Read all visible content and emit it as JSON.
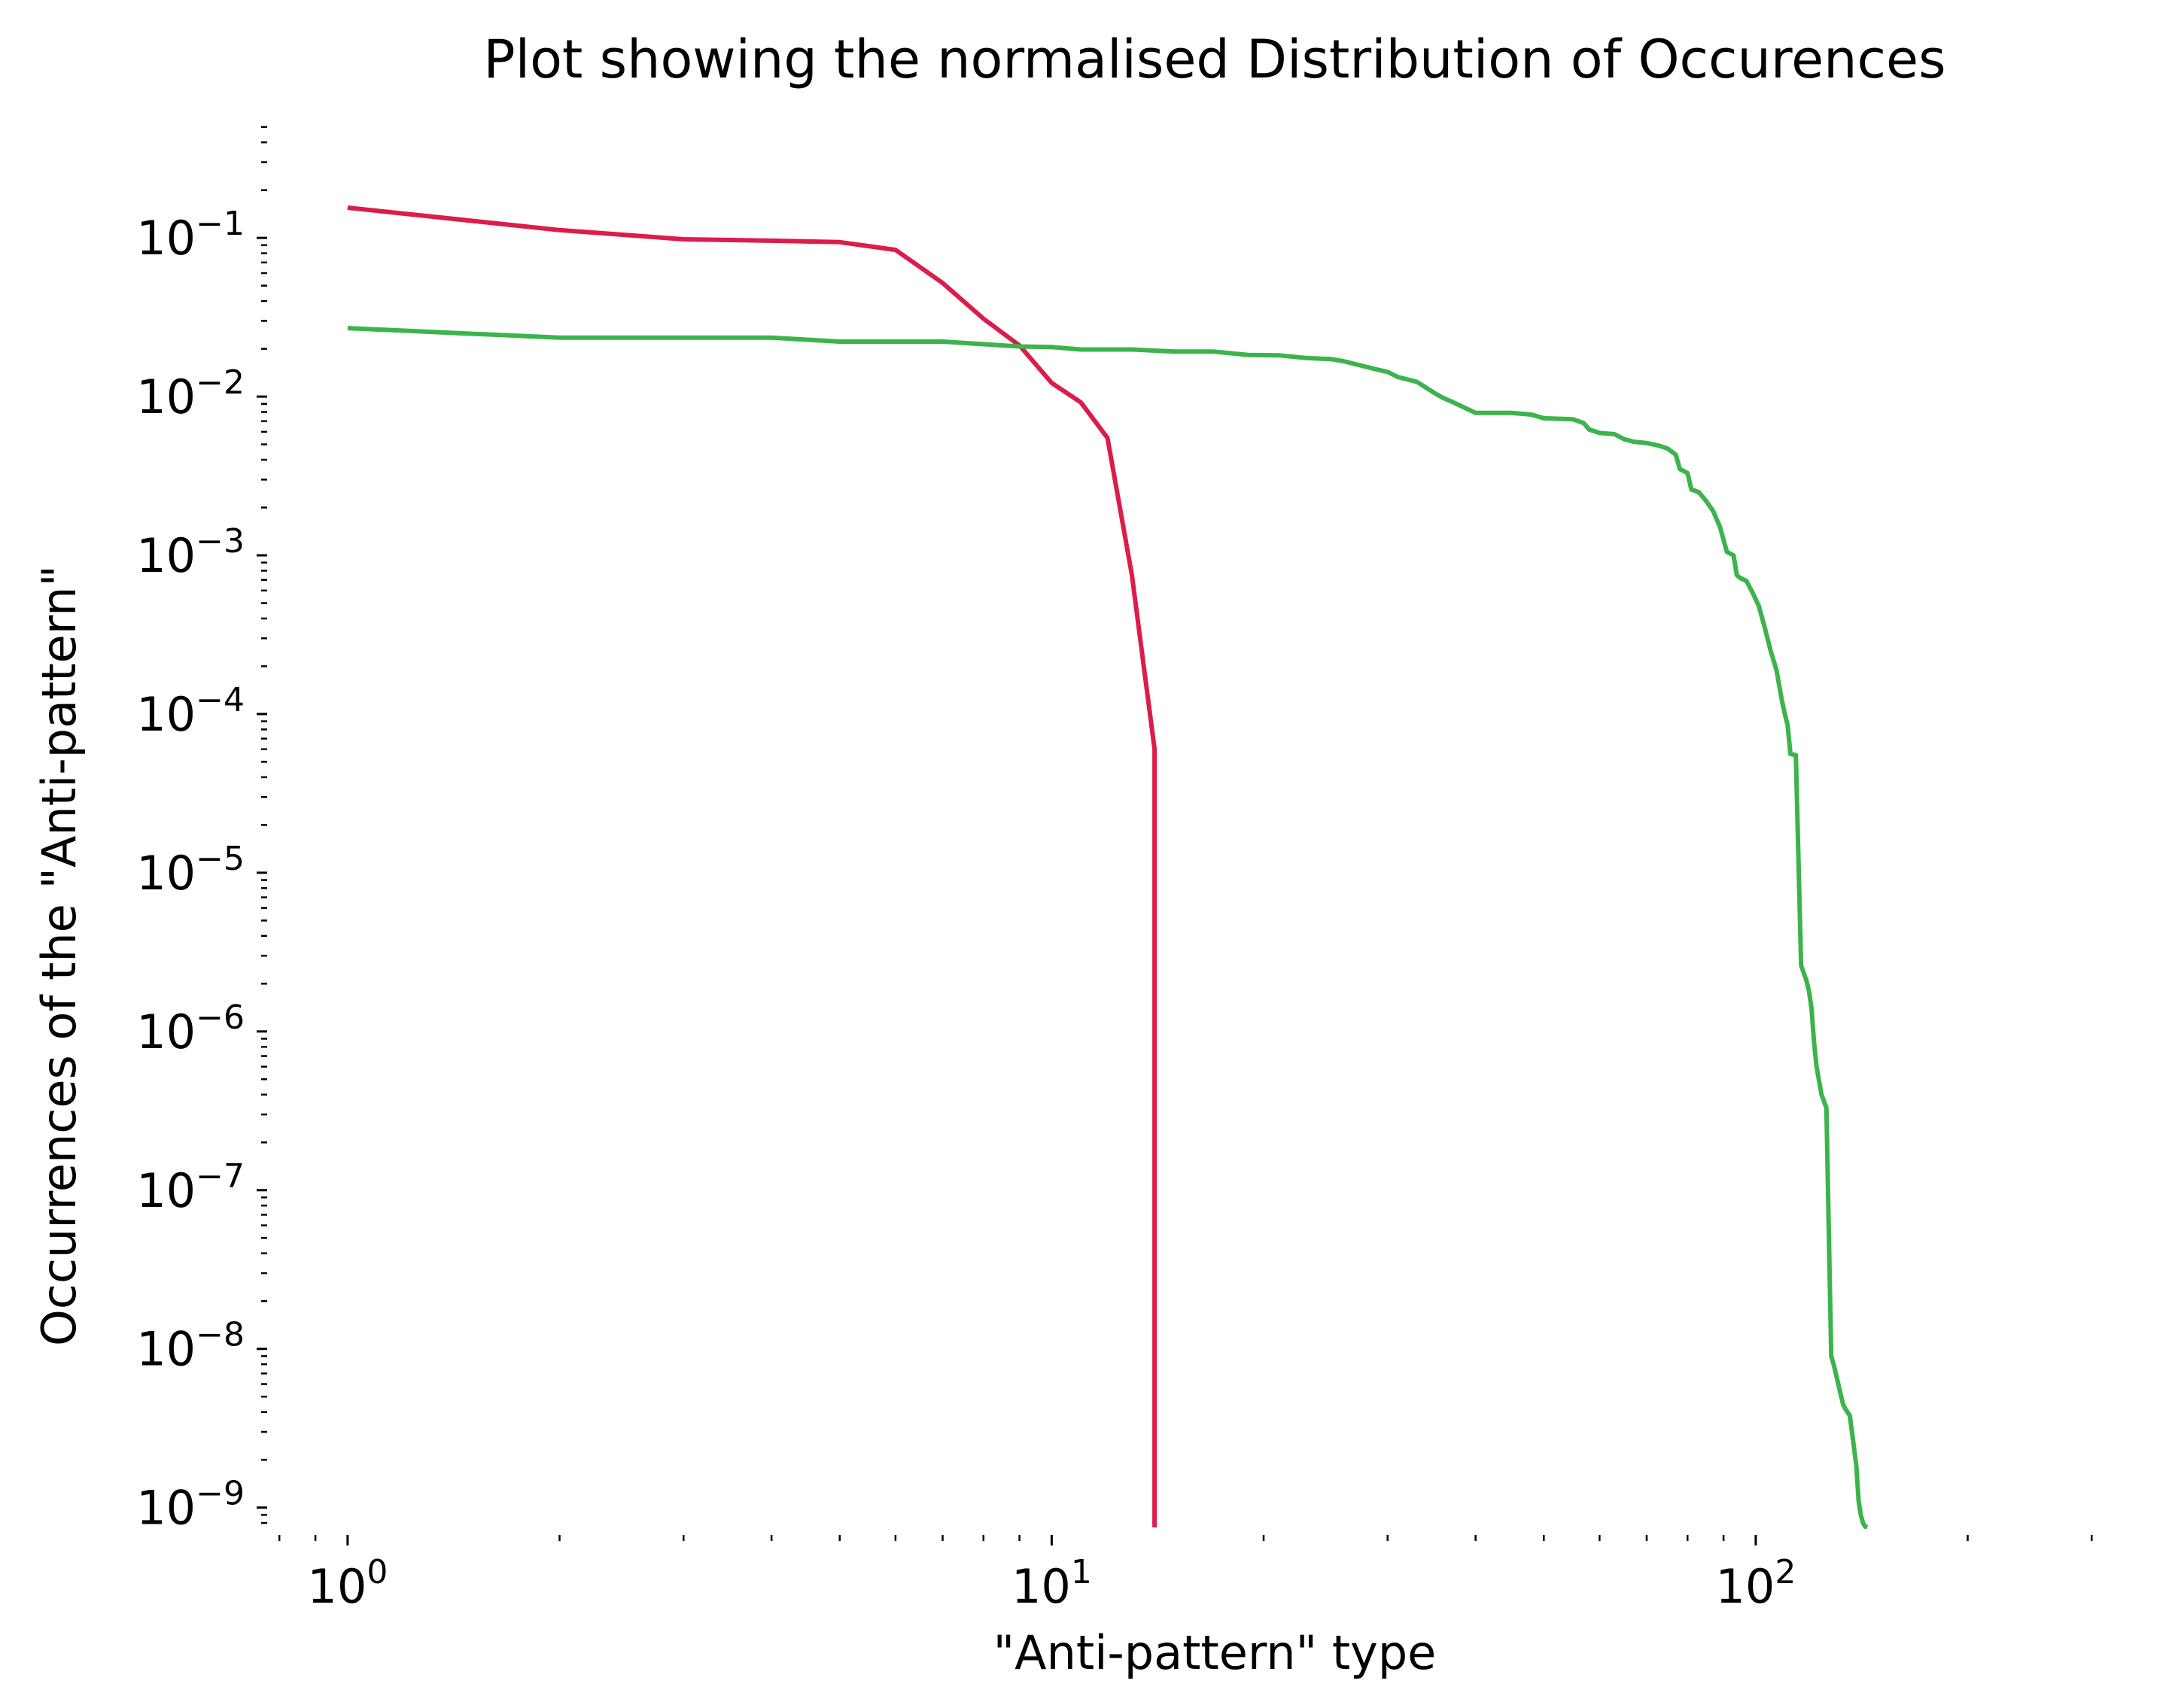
{
  "chart_data": {
    "type": "line",
    "title": "Plot showing the normalised Distribution of Occurences",
    "xlabel": "\"Anti-pattern\" type",
    "ylabel": "Occurrences of the \"Anti-pattern\"",
    "xscale": "log",
    "yscale": "log",
    "xlim": [
      0.75,
      330
    ],
    "ylim": [
      7.5e-10,
      0.55
    ],
    "grid": false,
    "legend": "none",
    "x_ticks": [
      {
        "value": 1,
        "base": "10",
        "exp": "0"
      },
      {
        "value": 10,
        "base": "10",
        "exp": "1"
      },
      {
        "value": 100,
        "base": "10",
        "exp": "2"
      }
    ],
    "y_ticks": [
      {
        "value": 0.1,
        "base": "10",
        "exp": "−1"
      },
      {
        "value": 0.01,
        "base": "10",
        "exp": "−2"
      },
      {
        "value": 0.001,
        "base": "10",
        "exp": "−3"
      },
      {
        "value": 0.0001,
        "base": "10",
        "exp": "−4"
      },
      {
        "value": 1e-05,
        "base": "10",
        "exp": "−5"
      },
      {
        "value": 1e-06,
        "base": "10",
        "exp": "−6"
      },
      {
        "value": 1e-07,
        "base": "10",
        "exp": "−7"
      },
      {
        "value": 1e-08,
        "base": "10",
        "exp": "−8"
      },
      {
        "value": 1e-09,
        "base": "10",
        "exp": "−9"
      }
    ],
    "series": [
      {
        "color": "#dc1c4b",
        "x": [
          1,
          2,
          3,
          4,
          5,
          6,
          7,
          8,
          9,
          10,
          11,
          12,
          13,
          14,
          14,
          14
        ],
        "y": [
          0.155,
          0.112,
          0.098,
          0.096,
          0.094,
          0.084,
          0.052,
          0.031,
          0.021,
          0.0122,
          0.0092,
          0.0055,
          0.00075,
          6e-05,
          1e-08,
          7.5e-10
        ]
      },
      {
        "color": "#3cb44b",
        "x": [
          1,
          2,
          3,
          4,
          5,
          7,
          9,
          10,
          11,
          13,
          15,
          17,
          19,
          21,
          23,
          25,
          26,
          27,
          29,
          30,
          31,
          33,
          35,
          36,
          37,
          40,
          45,
          48,
          50,
          55,
          57,
          58,
          60,
          63,
          65,
          67,
          70,
          73,
          75,
          77,
          78,
          80,
          81,
          83,
          85,
          87,
          89,
          91,
          93,
          94,
          95,
          97,
          99,
          101,
          103,
          105,
          107,
          109,
          110,
          111,
          112,
          114,
          116,
          118,
          119,
          120,
          121,
          122,
          124,
          126,
          128,
          129,
          131,
          133,
          134,
          136,
          137,
          139,
          140,
          141,
          142,
          143,
          144
        ],
        "y": [
          0.027,
          0.0235,
          0.0235,
          0.0235,
          0.0222,
          0.0222,
          0.0207,
          0.0205,
          0.0198,
          0.0198,
          0.0192,
          0.0192,
          0.0183,
          0.0182,
          0.0175,
          0.0172,
          0.0167,
          0.016,
          0.0148,
          0.0143,
          0.0133,
          0.0124,
          0.0105,
          0.0098,
          0.0093,
          0.0079,
          0.0079,
          0.0077,
          0.0073,
          0.0072,
          0.0068,
          0.0062,
          0.0059,
          0.0058,
          0.0054,
          0.0052,
          0.0051,
          0.0049,
          0.0047,
          0.0043,
          0.0035,
          0.0033,
          0.0026,
          0.0025,
          0.0022,
          0.0019,
          0.0015,
          0.00105,
          0.001,
          0.00075,
          0.00072,
          0.00069,
          0.00058,
          0.00048,
          0.00035,
          0.00025,
          0.00019,
          0.00012,
          0.0001,
          8.5e-05,
          5.6e-05,
          5.5e-05,
          2.6e-06,
          2.1e-06,
          1.8e-06,
          1.4e-06,
          8.5e-07,
          6e-07,
          4e-07,
          3.3e-07,
          9e-09,
          8e-09,
          6e-09,
          4.5e-09,
          4.2e-09,
          3.8e-09,
          3e-09,
          1.8e-09,
          1.1e-09,
          9e-10,
          8e-10,
          7.6e-10,
          7.5e-10
        ]
      }
    ]
  }
}
